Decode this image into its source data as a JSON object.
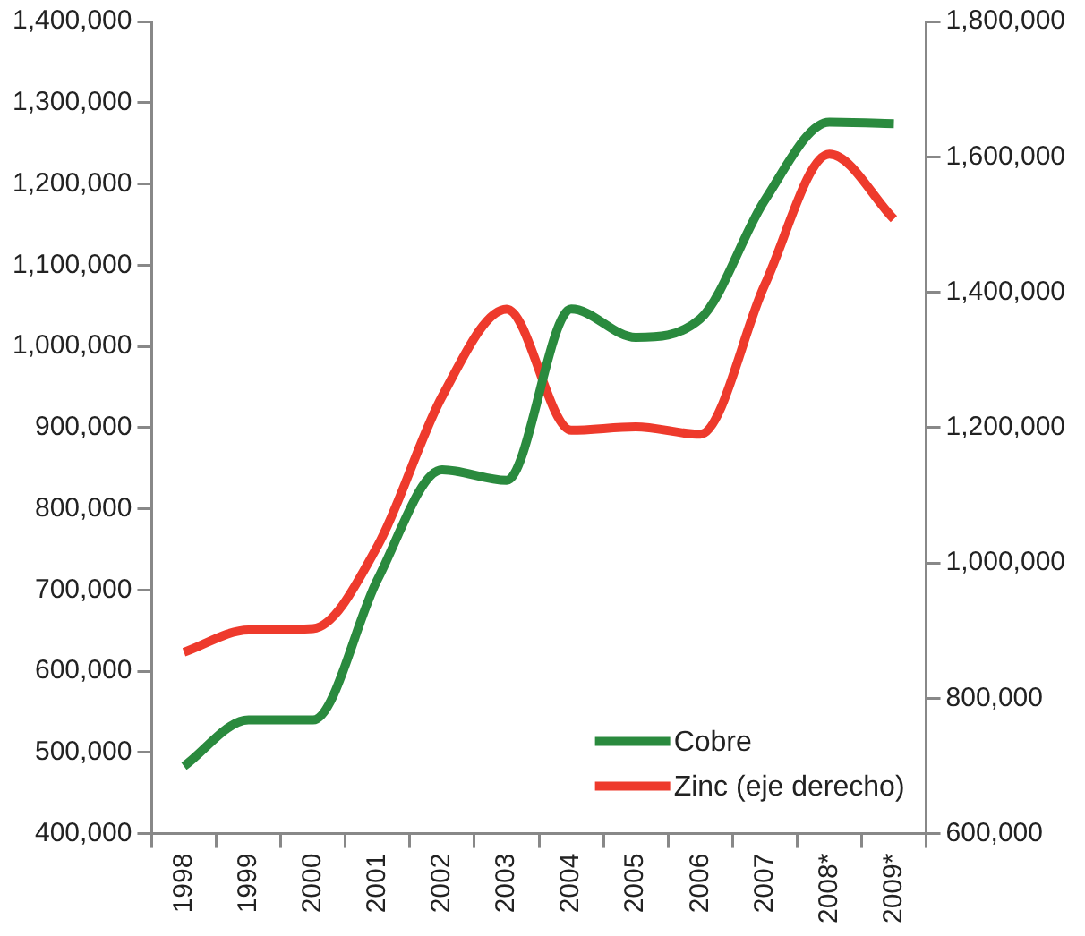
{
  "chart_data": {
    "type": "line",
    "categories": [
      "1998",
      "1999",
      "2000",
      "2001",
      "2002",
      "2003",
      "2004",
      "2005",
      "2006",
      "2007",
      "2008*",
      "2009*"
    ],
    "series": [
      {
        "name": "Cobre",
        "color": "#2a8a3e",
        "values": [
          483000,
          540000,
          540000,
          713000,
          848000,
          835000,
          1046000,
          1011000,
          1034000,
          1180000,
          1276000,
          1274000
        ]
      },
      {
        "name": "Zinc (eje derecho)",
        "color": "#ee3a2c",
        "axis": "y2",
        "values": [
          868000,
          901000,
          903000,
          1025000,
          1246000,
          1375000,
          1196000,
          1201000,
          1190000,
          1411000,
          1604000,
          1508000
        ]
      }
    ],
    "ylim": [
      400000,
      1400000
    ],
    "yticks": [
      {
        "value": 400000,
        "label": "400,000"
      },
      {
        "value": 500000,
        "label": "500,000"
      },
      {
        "value": 600000,
        "label": "600,000"
      },
      {
        "value": 700000,
        "label": "700,000"
      },
      {
        "value": 800000,
        "label": "800,000"
      },
      {
        "value": 900000,
        "label": "900,000"
      },
      {
        "value": 1000000,
        "label": "1,000,000"
      },
      {
        "value": 1100000,
        "label": "1,100,000"
      },
      {
        "value": 1200000,
        "label": "1,200,000"
      },
      {
        "value": 1300000,
        "label": "1,300,000"
      },
      {
        "value": 1400000,
        "label": "1,400,000"
      }
    ],
    "y2lim": [
      600000,
      1800000
    ],
    "y2ticks": [
      {
        "value": 600000,
        "label": "600,000"
      },
      {
        "value": 800000,
        "label": "800,000"
      },
      {
        "value": 1000000,
        "label": "1,000,000"
      },
      {
        "value": 1200000,
        "label": "1,200,000"
      },
      {
        "value": 1400000,
        "label": "1,400,000"
      },
      {
        "value": 1600000,
        "label": "1,600,000"
      },
      {
        "value": 1800000,
        "label": "1,800,000"
      }
    ],
    "legend": "bottom right",
    "grid": false,
    "marker": "none",
    "line_style": "solid"
  }
}
